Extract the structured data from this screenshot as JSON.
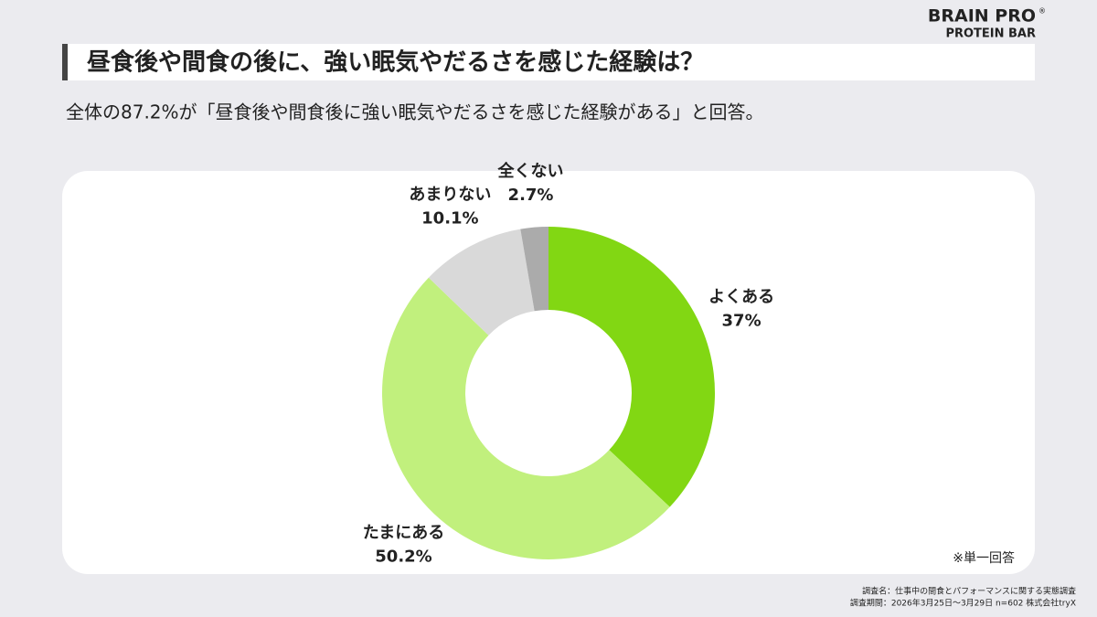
{
  "logo": {
    "brand": "BRAIN PRO",
    "mark": "®",
    "product": "PROTEIN BAR"
  },
  "chart_data": {
    "type": "donut",
    "title": "昼食後や間食の後に、強い眠気やだるさを感じた経験は？",
    "subtitle": "全体の87.2%が「昼食後や間食後に強い眠気やだるさを感じた経験がある」と回答。",
    "categories": [
      "よくある",
      "たまにある",
      "あまりない",
      "全くない"
    ],
    "values": [
      37,
      50.2,
      10.1,
      2.7
    ],
    "value_labels": [
      "37%",
      "50.2%",
      "10.1%",
      "2.7%"
    ],
    "colors": [
      "#82d713",
      "#c1f07d",
      "#d9d9d9",
      "#ababab"
    ],
    "note": "※単一回答",
    "source": [
      "調査名：仕事中の間食とパフォーマンスに関する実態調査",
      "調査期間：2026年3月25日〜3月29日 n=602 株式会社tryX"
    ]
  }
}
